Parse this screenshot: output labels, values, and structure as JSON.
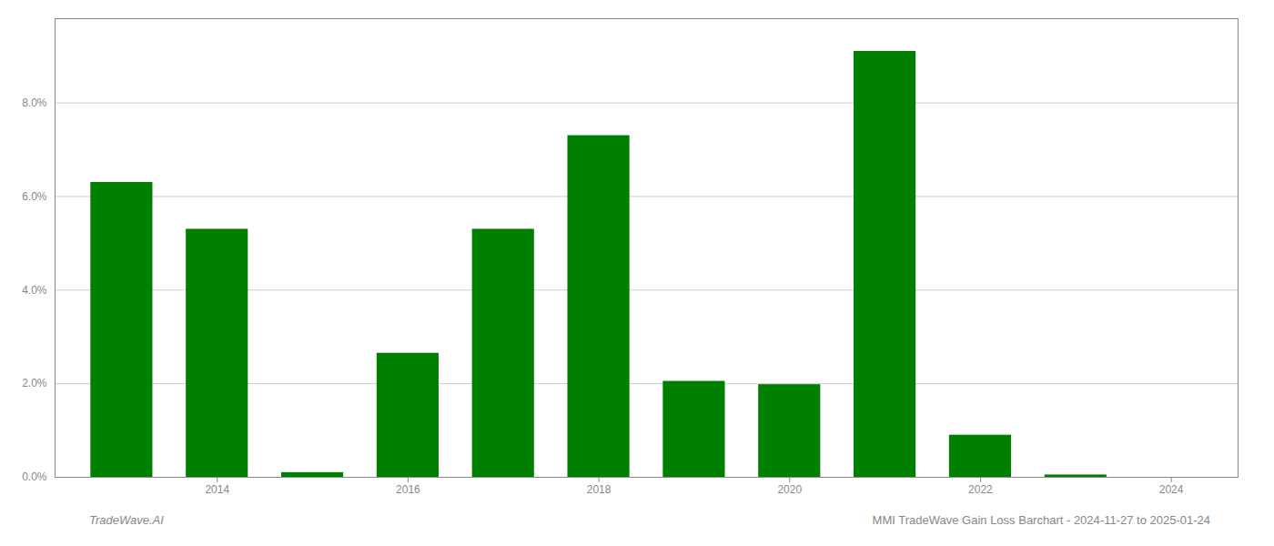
{
  "chart_data": {
    "type": "bar",
    "x": [
      2013,
      2014,
      2015,
      2016,
      2017,
      2018,
      2019,
      2020,
      2021,
      2022,
      2023,
      2024
    ],
    "values": [
      0.063,
      0.053,
      0.001,
      0.0265,
      0.053,
      0.073,
      0.0205,
      0.0198,
      0.091,
      0.009,
      0.0005,
      0.0
    ],
    "color": "#008000",
    "xlim": [
      2012.3,
      2024.7
    ],
    "xticks": [
      2014,
      2016,
      2018,
      2020,
      2022,
      2024
    ],
    "ylim": [
      0.0,
      0.098
    ],
    "yticks": [
      {
        "value": 0.0,
        "label": "0.0%"
      },
      {
        "value": 0.02,
        "label": "2.0%"
      },
      {
        "value": 0.04,
        "label": "4.0%"
      },
      {
        "value": 0.06,
        "label": "6.0%"
      },
      {
        "value": 0.08,
        "label": "8.0%"
      }
    ],
    "grid": true,
    "annotations": [
      "TradeWave.AI",
      "MMI TradeWave Gain Loss Barchart - 2024-11-27 to 2025-01-24"
    ]
  }
}
